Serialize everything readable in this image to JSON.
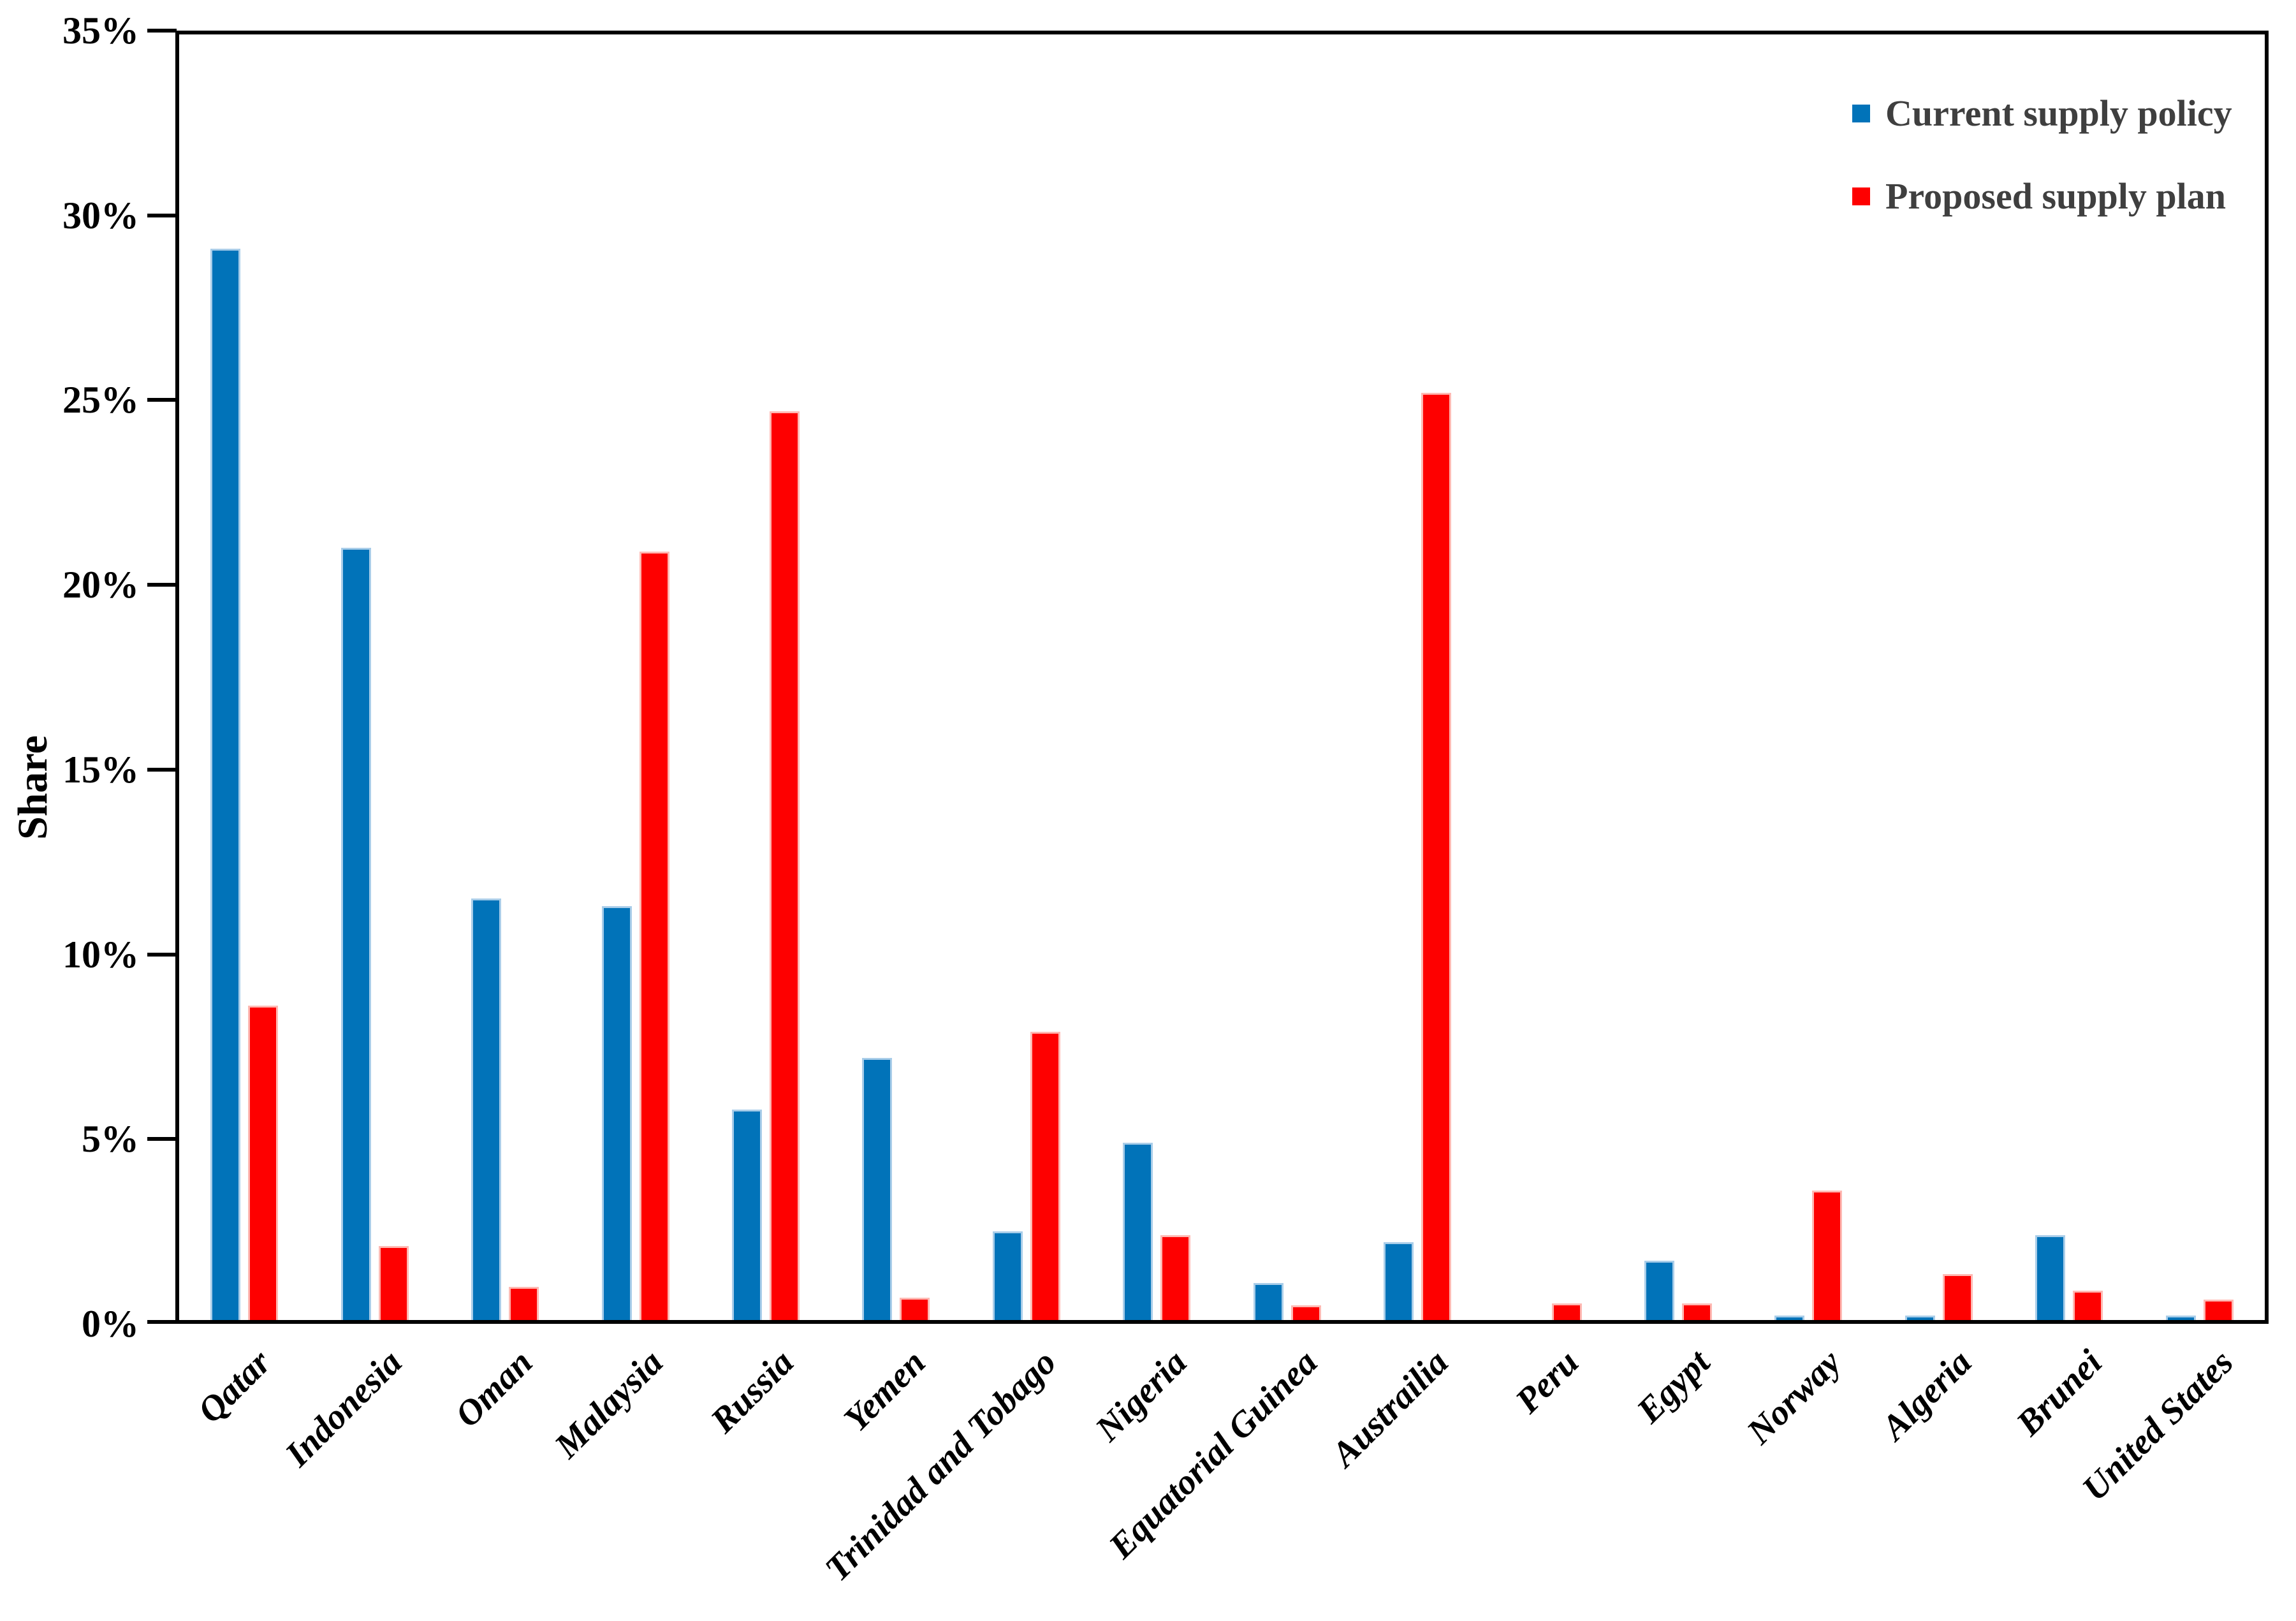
{
  "chart_data": {
    "type": "bar",
    "title": "",
    "xlabel": "",
    "ylabel": "Share",
    "ylim": [
      0,
      35
    ],
    "y_ticks": [
      "0%",
      "5%",
      "10%",
      "15%",
      "20%",
      "25%",
      "30%",
      "35%"
    ],
    "grid": "off",
    "legend_position": "inside-top-right",
    "plot_border": "full-box",
    "axis_color": "#000000",
    "background_color": "#FFFFFF",
    "legend_text_color": "#3F3F3F",
    "categories": [
      "Qatar",
      "Indonesia",
      "Oman",
      "Malaysia",
      "Russia",
      "Yemen",
      "Trinidad and Tobago",
      "Nigeria",
      "Equatorial Guinea",
      "Austrailia",
      "Peru",
      "Egypt",
      "Norway",
      "Algeria",
      "Brunei",
      "United States"
    ],
    "series": [
      {
        "name": "Current supply policy",
        "color": "#0173B9",
        "edge_color": "#A9CDE9",
        "values": [
          29.0,
          20.9,
          11.4,
          11.2,
          5.7,
          7.1,
          2.4,
          4.8,
          1.0,
          2.1,
          0,
          1.6,
          0.12,
          0.12,
          2.3,
          0.12
        ]
      },
      {
        "name": "Proposed supply plan",
        "color": "#FE0000",
        "edge_color": "#FEB9B3",
        "values": [
          8.5,
          2.0,
          0.9,
          20.8,
          24.6,
          0.6,
          7.8,
          2.3,
          0.4,
          25.1,
          0.45,
          0.45,
          3.5,
          1.25,
          0.8,
          0.55
        ]
      }
    ]
  }
}
